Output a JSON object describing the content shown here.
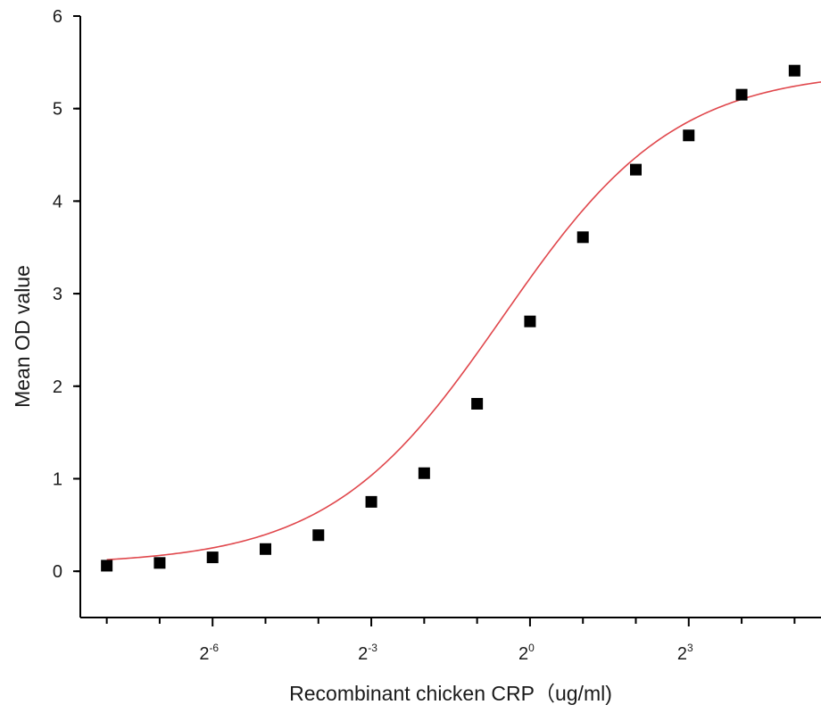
{
  "chart_data": {
    "type": "scatter",
    "title": "",
    "xlabel": "Recombinant chicken CRP（ug/ml)",
    "ylabel": "Mean OD value",
    "x_scale": "log2",
    "x_tick_labels": [
      {
        "base": "2",
        "exp": "-6",
        "value": -6
      },
      {
        "base": "2",
        "exp": "-3",
        "value": -3
      },
      {
        "base": "2",
        "exp": "0",
        "value": 0
      },
      {
        "base": "2",
        "exp": "3",
        "value": 3
      }
    ],
    "xlim_log2": [
      -8.5,
      5.5
    ],
    "y_ticks": [
      0,
      1,
      2,
      3,
      4,
      5,
      6
    ],
    "ylim": [
      -0.5,
      6
    ],
    "grid": false,
    "legend": "none",
    "colors": {
      "points": "#000000",
      "fit": "#e0474c",
      "axes": "#000000"
    },
    "series": [
      {
        "marker": "square",
        "x_log2": [
          -8,
          -7,
          -6,
          -5,
          -4,
          -3,
          -2,
          -1,
          0,
          1,
          2,
          3,
          4,
          5
        ],
        "y": [
          0.06,
          0.09,
          0.15,
          0.24,
          0.39,
          0.75,
          1.06,
          1.81,
          2.7,
          3.61,
          4.34,
          4.71,
          5.15,
          5.41
        ]
      }
    ],
    "fit_curve": {
      "type": "4PL",
      "bottom": 0.07,
      "top": 5.42,
      "log2_ec50": -0.52,
      "hill_slope_log2": 0.88
    }
  }
}
